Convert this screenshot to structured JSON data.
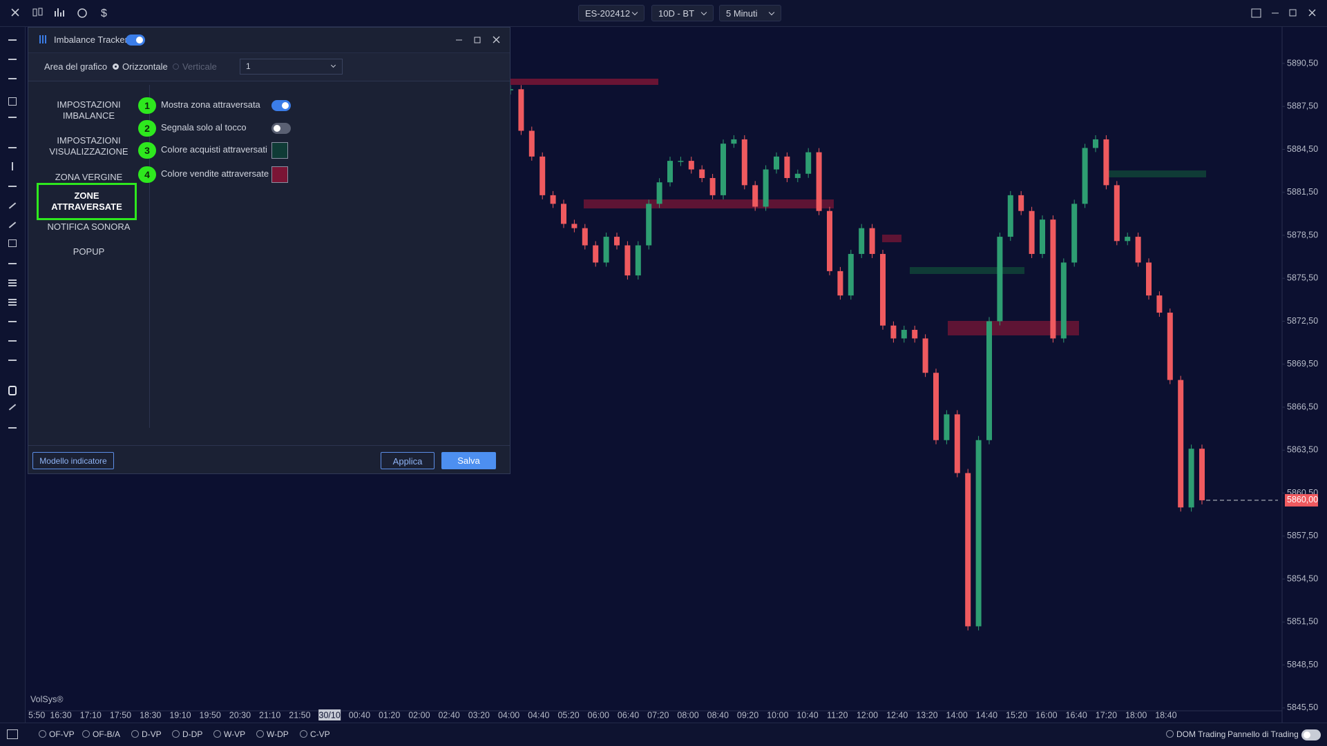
{
  "toolbar": {
    "symbol": "ES-202412",
    "range": "10D - BT",
    "interval": "5 Minuti"
  },
  "dialog": {
    "title": "Imbalance Tracker",
    "enabled": true,
    "area_label": "Area del grafico",
    "orientation_options": [
      "Orizzontale",
      "Verticale"
    ],
    "orientation_selected": 0,
    "dropdown_value": "1",
    "nav": [
      [
        "IMPOSTAZIONI",
        "IMBALANCE"
      ],
      [
        "IMPOSTAZIONI",
        "VISUALIZZAZIONE"
      ],
      [
        "ZONA VERGINE"
      ],
      [
        "ZONE ATTRAVERSATE"
      ],
      [
        "NOTIFICA SONORA"
      ],
      [
        "POPUP"
      ]
    ],
    "nav_selected": 3,
    "settings": [
      {
        "badge": "1",
        "label": "Mostra zona attraversata",
        "control": "toggle",
        "on": true
      },
      {
        "badge": "2",
        "label": "Segnala solo al tocco",
        "control": "toggle",
        "on": false
      },
      {
        "badge": "3",
        "label": "Colore acquisti attraversati",
        "control": "color",
        "color": "#0f3b36"
      },
      {
        "badge": "4",
        "label": "Colore vendite attraversate",
        "control": "color",
        "color": "#7a1535"
      }
    ],
    "buttons": {
      "template": "Modello indicatore",
      "apply": "Applica",
      "save": "Salva"
    }
  },
  "chart_data": {
    "type": "candlestick",
    "watermark": "VolSys®",
    "x_tick_labels": [
      "5:50",
      "16:30",
      "17:10",
      "17:50",
      "18:30",
      "19:10",
      "19:50",
      "20:30",
      "21:10",
      "21:50",
      "30/10",
      "00:40",
      "01:20",
      "02:00",
      "02:40",
      "03:20",
      "04:00",
      "04:40",
      "05:20",
      "06:00",
      "06:40",
      "07:20",
      "08:00",
      "08:40",
      "09:20",
      "10:00",
      "10:40",
      "11:20",
      "12:00",
      "12:40",
      "13:20",
      "14:00",
      "14:40",
      "15:20",
      "16:00",
      "16:40",
      "17:20",
      "18:00",
      "18:40"
    ],
    "highlighted_label": 10,
    "values": [
      5888.7,
      5885.8,
      5884.0,
      5881.3,
      5880.7,
      5879.3,
      5879.0,
      5877.8,
      5876.6,
      5878.4,
      5877.8,
      5875.7,
      5877.8,
      5880.7,
      5882.2,
      5883.7,
      5883.7,
      5883.1,
      5882.5,
      5881.3,
      5884.9,
      5885.2,
      5882.0,
      5880.5,
      5883.1,
      5884.0,
      5882.5,
      5882.8,
      5884.3,
      5880.2,
      5876.0,
      5874.3,
      5877.2,
      5879.0,
      5877.2,
      5872.2,
      5871.3,
      5871.9,
      5871.3,
      5868.9,
      5864.2,
      5866.0,
      5861.9,
      5851.2,
      5864.2,
      5872.5,
      5878.4,
      5881.3,
      5880.2,
      5877.2,
      5879.6,
      5871.3,
      5876.6,
      5880.7,
      5884.6,
      5885.2,
      5882.0,
      5878.1,
      5878.4,
      5876.6,
      5874.3,
      5873.1,
      5868.4,
      5859.5,
      5863.6,
      5860.0
    ],
    "up_color": "#2e9e72",
    "down_color": "#ef5a5f",
    "ylim": [
      5845.3,
      5893.1
    ],
    "yticks": [
      {
        "value": 5890.5,
        "label": "5890,50"
      },
      {
        "value": 5887.5,
        "label": "5887,50"
      },
      {
        "value": 5884.5,
        "label": "5884,50"
      },
      {
        "value": 5881.5,
        "label": "5881,50"
      },
      {
        "value": 5878.5,
        "label": "5878,50"
      },
      {
        "value": 5875.5,
        "label": "5875,50"
      },
      {
        "value": 5872.5,
        "label": "5872,50"
      },
      {
        "value": 5869.5,
        "label": "5869,50"
      },
      {
        "value": 5866.5,
        "label": "5866,50"
      },
      {
        "value": 5863.5,
        "label": "5863,50"
      },
      {
        "value": 5860.5,
        "label": "5860,50"
      },
      {
        "value": 5857.5,
        "label": "5857,50"
      },
      {
        "value": 5854.5,
        "label": "5854,50"
      },
      {
        "value": 5851.5,
        "label": "5851,50"
      },
      {
        "value": 5848.5,
        "label": "5848,50"
      },
      {
        "value": 5845.5,
        "label": "5845,50"
      }
    ],
    "last_price": {
      "value": 5860.0,
      "label": "5860,00"
    }
  },
  "bottom_bar": {
    "studies": [
      "OF-VP",
      "OF-B/A",
      "D-VP",
      "D-DP",
      "W-VP",
      "W-DP",
      "C-VP"
    ],
    "dom": "DOM Trading",
    "panel": "Pannello di Trading"
  }
}
